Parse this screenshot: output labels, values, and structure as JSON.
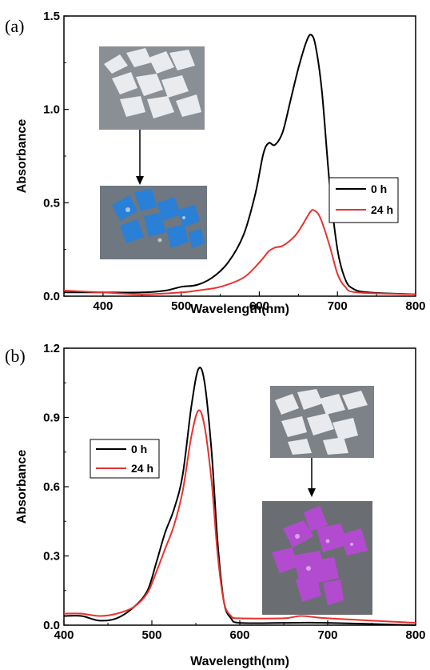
{
  "chart_data": [
    {
      "panel": "(a)",
      "type": "line",
      "xlabel": "Wavelength(nm)",
      "ylabel": "Absorbance",
      "xlim": [
        350,
        800
      ],
      "ylim": [
        0,
        1.5
      ],
      "xticks": [
        "400",
        "500",
        "600",
        "700",
        "800"
      ],
      "yticks": [
        "0.0",
        "0.5",
        "1.0",
        "1.5"
      ],
      "legend_position": "right",
      "series": [
        {
          "name": "0 h",
          "color": "#000000",
          "points": [
            [
              350,
              0.02
            ],
            [
              400,
              0.02
            ],
            [
              450,
              0.02
            ],
            [
              480,
              0.03
            ],
            [
              500,
              0.05
            ],
            [
              520,
              0.06
            ],
            [
              540,
              0.1
            ],
            [
              560,
              0.18
            ],
            [
              580,
              0.33
            ],
            [
              595,
              0.55
            ],
            [
              605,
              0.76
            ],
            [
              612,
              0.82
            ],
            [
              620,
              0.81
            ],
            [
              630,
              0.88
            ],
            [
              640,
              1.05
            ],
            [
              650,
              1.22
            ],
            [
              660,
              1.36
            ],
            [
              666,
              1.4
            ],
            [
              672,
              1.34
            ],
            [
              680,
              1.1
            ],
            [
              690,
              0.6
            ],
            [
              700,
              0.25
            ],
            [
              710,
              0.09
            ],
            [
              720,
              0.04
            ],
            [
              740,
              0.02
            ],
            [
              800,
              0.01
            ]
          ]
        },
        {
          "name": "24 h",
          "color": "#e8322f",
          "points": [
            [
              350,
              0.03
            ],
            [
              400,
              0.02
            ],
            [
              450,
              0.01
            ],
            [
              500,
              0.02
            ],
            [
              520,
              0.03
            ],
            [
              550,
              0.05
            ],
            [
              580,
              0.1
            ],
            [
              600,
              0.18
            ],
            [
              612,
              0.24
            ],
            [
              620,
              0.26
            ],
            [
              630,
              0.27
            ],
            [
              645,
              0.32
            ],
            [
              655,
              0.38
            ],
            [
              665,
              0.45
            ],
            [
              670,
              0.46
            ],
            [
              678,
              0.42
            ],
            [
              690,
              0.27
            ],
            [
              700,
              0.12
            ],
            [
              710,
              0.05
            ],
            [
              725,
              0.02
            ],
            [
              800,
              0.01
            ]
          ]
        }
      ]
    },
    {
      "panel": "(b)",
      "type": "line",
      "xlabel": "Wavelength(nm)",
      "ylabel": "Absorbance",
      "xlim": [
        400,
        800
      ],
      "ylim": [
        0,
        1.2
      ],
      "xticks": [
        "400",
        "500",
        "600",
        "700",
        "800"
      ],
      "yticks": [
        "0.0",
        "0.3",
        "0.6",
        "0.9",
        "1.2"
      ],
      "legend_position": "left",
      "series": [
        {
          "name": "0 h",
          "color": "#000000",
          "points": [
            [
              400,
              0.04
            ],
            [
              420,
              0.04
            ],
            [
              440,
              0.02
            ],
            [
              460,
              0.03
            ],
            [
              480,
              0.08
            ],
            [
              495,
              0.15
            ],
            [
              505,
              0.27
            ],
            [
              515,
              0.4
            ],
            [
              525,
              0.5
            ],
            [
              535,
              0.65
            ],
            [
              545,
              0.95
            ],
            [
              553,
              1.11
            ],
            [
              560,
              1.05
            ],
            [
              568,
              0.75
            ],
            [
              575,
              0.35
            ],
            [
              582,
              0.1
            ],
            [
              590,
              0.03
            ],
            [
              600,
              0.01
            ],
            [
              650,
              0.01
            ],
            [
              700,
              0.01
            ],
            [
              800,
              0.0
            ]
          ]
        },
        {
          "name": "24 h",
          "color": "#e8322f",
          "points": [
            [
              400,
              0.05
            ],
            [
              420,
              0.05
            ],
            [
              440,
              0.04
            ],
            [
              460,
              0.05
            ],
            [
              480,
              0.08
            ],
            [
              495,
              0.14
            ],
            [
              505,
              0.23
            ],
            [
              515,
              0.33
            ],
            [
              525,
              0.43
            ],
            [
              535,
              0.58
            ],
            [
              545,
              0.82
            ],
            [
              553,
              0.93
            ],
            [
              560,
              0.86
            ],
            [
              568,
              0.62
            ],
            [
              575,
              0.3
            ],
            [
              582,
              0.1
            ],
            [
              590,
              0.04
            ],
            [
              600,
              0.03
            ],
            [
              650,
              0.03
            ],
            [
              670,
              0.04
            ],
            [
              700,
              0.03
            ],
            [
              800,
              0.01
            ]
          ]
        }
      ]
    }
  ],
  "insets": {
    "a_top": {
      "description_icon": "white-crystals-photo-icon",
      "base_color": "#8a8f96",
      "crystal_color": "#ffffff"
    },
    "a_bottom": {
      "description_icon": "blue-crystals-photo-icon",
      "base_color": "#6f7780",
      "crystal_color": "#2a7fd6"
    },
    "b_top": {
      "description_icon": "white-crystals-photo-icon",
      "base_color": "#7d8288",
      "crystal_color": "#ffffff"
    },
    "b_bottom": {
      "description_icon": "purple-crystals-photo-icon",
      "base_color": "#6a6e72",
      "crystal_color": "#b34bd0"
    }
  }
}
